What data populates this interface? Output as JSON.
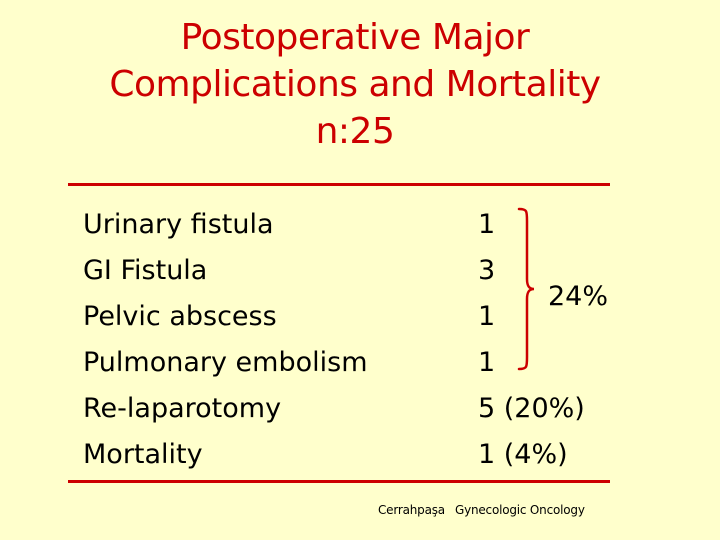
{
  "title": {
    "line1": "Postoperative Major",
    "line2": "Complications and Mortality",
    "line3": "n:25"
  },
  "rows": [
    {
      "label": "Urinary fistula",
      "value": "1"
    },
    {
      "label": "GI Fistula",
      "value": "3"
    },
    {
      "label": "Pelvic abscess",
      "value": "1"
    },
    {
      "label": "Pulmonary embolism",
      "value": "1"
    },
    {
      "label": "Re-laparotomy",
      "value": "5 (20%)"
    },
    {
      "label": "Mortality",
      "value": "1 (4%)"
    }
  ],
  "bracket_note": "24%",
  "footer": {
    "institution": "Cerrahpaşa",
    "department": "Gynecologic Oncology"
  },
  "colors": {
    "background": "#ffffcc",
    "title": "#cc0000",
    "rule": "#cc0000",
    "bracket": "#cc0000"
  }
}
